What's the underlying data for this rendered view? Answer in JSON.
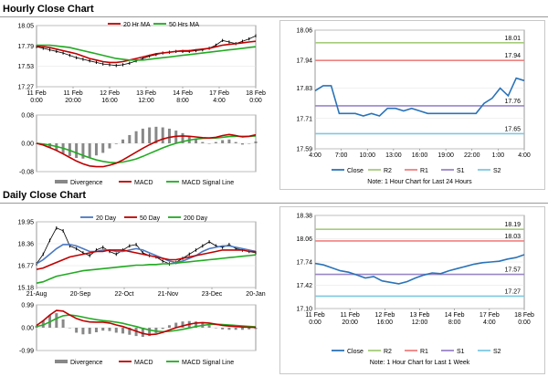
{
  "sections": {
    "hourly_title": "Hourly Close Chart",
    "daily_title": "Daily Close Chart"
  },
  "colors": {
    "price": "#000000",
    "ma_short": "#c00000",
    "ma_long": "#22aa22",
    "ma_mid": "#4a78c2",
    "close": "#2a73b8",
    "r2": "#a6cc7a",
    "r1": "#f08080",
    "s1": "#9a86c8",
    "s2": "#7ec8e3",
    "macd": "#c00000",
    "signal": "#22aa22",
    "divergence": "#888888"
  },
  "chart_data": [
    {
      "id": "hourly_price",
      "type": "line",
      "legend": [
        "20 Hr MA",
        "50 Hrs MA"
      ],
      "yticks": [
        "18.05",
        "17.79",
        "17.53",
        "17.27"
      ],
      "ytick_values": [
        18.05,
        17.79,
        17.53,
        17.27
      ],
      "ylim": [
        17.27,
        18.05
      ],
      "xticks": [
        [
          "11 Feb",
          "0:00"
        ],
        [
          "11 Feb",
          "20:00"
        ],
        [
          "12 Feb",
          "16:00"
        ],
        [
          "13 Feb",
          "12:00"
        ],
        [
          "14 Feb",
          "8:00"
        ],
        [
          "17 Feb",
          "4:00"
        ],
        [
          "18 Feb",
          "0:00"
        ]
      ],
      "close": [
        17.78,
        17.76,
        17.74,
        17.72,
        17.7,
        17.67,
        17.64,
        17.62,
        17.6,
        17.58,
        17.56,
        17.55,
        17.54,
        17.55,
        17.57,
        17.6,
        17.63,
        17.66,
        17.68,
        17.7,
        17.71,
        17.72,
        17.72,
        17.72,
        17.73,
        17.74,
        17.76,
        17.8,
        17.86,
        17.84,
        17.82,
        17.85,
        17.88,
        17.92
      ],
      "series": [
        {
          "name": "20 Hr MA",
          "values": [
            17.79,
            17.78,
            17.77,
            17.75,
            17.73,
            17.71,
            17.69,
            17.66,
            17.63,
            17.61,
            17.59,
            17.58,
            17.58,
            17.59,
            17.61,
            17.63,
            17.65,
            17.67,
            17.69,
            17.7,
            17.71,
            17.72,
            17.73,
            17.73,
            17.74,
            17.75,
            17.76,
            17.78,
            17.8,
            17.81,
            17.82,
            17.83,
            17.84,
            17.85
          ]
        },
        {
          "name": "50 Hrs MA",
          "values": [
            17.8,
            17.8,
            17.8,
            17.79,
            17.78,
            17.77,
            17.75,
            17.73,
            17.71,
            17.69,
            17.67,
            17.65,
            17.63,
            17.62,
            17.61,
            17.61,
            17.61,
            17.62,
            17.63,
            17.64,
            17.65,
            17.66,
            17.67,
            17.68,
            17.69,
            17.7,
            17.71,
            17.72,
            17.73,
            17.74,
            17.75,
            17.76,
            17.77,
            17.78
          ]
        }
      ]
    },
    {
      "id": "hourly_macd",
      "type": "line",
      "yticks": [
        "0.08",
        "0.00",
        "-0.08"
      ],
      "ytick_values": [
        0.08,
        0.0,
        -0.08
      ],
      "ylim": [
        -0.08,
        0.08
      ],
      "legend": [
        "Divergence",
        "MACD",
        "MACD Signal Line"
      ],
      "series": [
        {
          "name": "MACD",
          "values": [
            0.0,
            -0.005,
            -0.012,
            -0.02,
            -0.03,
            -0.04,
            -0.05,
            -0.058,
            -0.064,
            -0.066,
            -0.066,
            -0.062,
            -0.056,
            -0.047,
            -0.036,
            -0.025,
            -0.014,
            -0.004,
            0.005,
            0.012,
            0.017,
            0.02,
            0.021,
            0.02,
            0.018,
            0.016,
            0.015,
            0.017,
            0.022,
            0.025,
            0.022,
            0.018,
            0.02,
            0.024
          ]
        },
        {
          "name": "MACD Signal Line",
          "values": [
            0.0,
            -0.002,
            -0.005,
            -0.009,
            -0.014,
            -0.02,
            -0.027,
            -0.034,
            -0.041,
            -0.047,
            -0.051,
            -0.054,
            -0.055,
            -0.053,
            -0.049,
            -0.044,
            -0.037,
            -0.029,
            -0.021,
            -0.013,
            -0.006,
            0.0,
            0.005,
            0.009,
            0.012,
            0.014,
            0.015,
            0.015,
            0.017,
            0.019,
            0.02,
            0.02,
            0.02,
            0.021
          ]
        }
      ]
    },
    {
      "id": "hourly_levels",
      "type": "line",
      "yticks": [
        "18.06",
        "17.94",
        "17.83",
        "17.71",
        "17.59"
      ],
      "ytick_values": [
        18.06,
        17.94,
        17.83,
        17.71,
        17.59
      ],
      "ylim": [
        17.59,
        18.06
      ],
      "xticks": [
        "4:00",
        "7:00",
        "10:00",
        "13:00",
        "16:00",
        "19:00",
        "22:00",
        "1:00",
        "4:00"
      ],
      "close": [
        17.82,
        17.84,
        17.84,
        17.73,
        17.73,
        17.73,
        17.72,
        17.73,
        17.72,
        17.75,
        17.75,
        17.74,
        17.75,
        17.74,
        17.73,
        17.73,
        17.73,
        17.73,
        17.73,
        17.73,
        17.73,
        17.77,
        17.79,
        17.83,
        17.8,
        17.87,
        17.86
      ],
      "levels": [
        {
          "name": "R2",
          "value": 18.01,
          "label": "18.01"
        },
        {
          "name": "R1",
          "value": 17.94,
          "label": "17.94"
        },
        {
          "name": "S1",
          "value": 17.76,
          "label": "17.76"
        },
        {
          "name": "S2",
          "value": 17.65,
          "label": "17.65"
        }
      ],
      "legend": [
        "Close",
        "R2",
        "R1",
        "S1",
        "S2"
      ],
      "note": "Note: 1 Hour Chart for Last 24 Hours"
    },
    {
      "id": "daily_price",
      "type": "line",
      "legend": [
        "20 Day",
        "50 Day",
        "200 Day"
      ],
      "yticks": [
        "19.95",
        "18.36",
        "16.77",
        "15.18"
      ],
      "ytick_values": [
        19.95,
        18.36,
        16.77,
        15.18
      ],
      "ylim": [
        15.18,
        19.95
      ],
      "xticks": [
        "21-Aug",
        "20-Sep",
        "22-Oct",
        "21-Nov",
        "23-Dec",
        "20-Jan"
      ],
      "close": [
        16.9,
        17.6,
        18.6,
        19.5,
        19.3,
        18.2,
        18.0,
        17.7,
        17.5,
        17.9,
        18.1,
        17.8,
        17.6,
        17.9,
        18.2,
        18.3,
        17.7,
        17.5,
        17.4,
        17.1,
        16.9,
        17.0,
        17.3,
        17.6,
        17.9,
        18.2,
        18.5,
        18.2,
        18.1,
        18.3,
        18.0,
        17.9,
        17.8,
        17.7
      ],
      "series": [
        {
          "name": "20 Day",
          "values": [
            16.9,
            17.2,
            17.6,
            18.0,
            18.3,
            18.3,
            18.2,
            18.0,
            17.8,
            17.8,
            17.9,
            17.9,
            17.8,
            17.8,
            17.9,
            18.0,
            17.9,
            17.7,
            17.5,
            17.3,
            17.1,
            17.0,
            17.1,
            17.3,
            17.5,
            17.8,
            18.0,
            18.1,
            18.2,
            18.2,
            18.1,
            18.0,
            17.9,
            17.8
          ]
        },
        {
          "name": "50 Day",
          "values": [
            16.5,
            16.6,
            16.8,
            17.0,
            17.2,
            17.4,
            17.5,
            17.6,
            17.7,
            17.8,
            17.8,
            17.9,
            17.9,
            17.9,
            17.8,
            17.7,
            17.6,
            17.5,
            17.4,
            17.3,
            17.2,
            17.2,
            17.3,
            17.4,
            17.5,
            17.6,
            17.7,
            17.8,
            17.9,
            17.9,
            17.9,
            17.9,
            17.8,
            17.8
          ]
        },
        {
          "name": "200 Day",
          "values": [
            15.5,
            15.6,
            15.8,
            16.0,
            16.1,
            16.2,
            16.3,
            16.4,
            16.45,
            16.5,
            16.55,
            16.6,
            16.65,
            16.7,
            16.75,
            16.8,
            16.8,
            16.85,
            16.85,
            16.9,
            16.9,
            16.95,
            17.0,
            17.05,
            17.1,
            17.15,
            17.2,
            17.25,
            17.3,
            17.35,
            17.4,
            17.45,
            17.5,
            17.55
          ]
        }
      ]
    },
    {
      "id": "daily_macd",
      "type": "line",
      "yticks": [
        "0.99",
        "0.00",
        "-0.99"
      ],
      "ytick_values": [
        0.99,
        0.0,
        -0.99
      ],
      "ylim": [
        -0.99,
        0.99
      ],
      "legend": [
        "Divergence",
        "MACD",
        "MACD Signal Line"
      ],
      "series": [
        {
          "name": "MACD",
          "values": [
            0.1,
            0.3,
            0.55,
            0.75,
            0.72,
            0.55,
            0.4,
            0.3,
            0.25,
            0.24,
            0.24,
            0.2,
            0.12,
            0.05,
            -0.05,
            -0.15,
            -0.25,
            -0.3,
            -0.28,
            -0.2,
            -0.1,
            0.0,
            0.08,
            0.15,
            0.2,
            0.22,
            0.2,
            0.15,
            0.1,
            0.07,
            0.05,
            0.03,
            0.02,
            0.01
          ]
        },
        {
          "name": "MACD Signal Line",
          "values": [
            0.05,
            0.12,
            0.25,
            0.4,
            0.52,
            0.55,
            0.52,
            0.46,
            0.4,
            0.35,
            0.31,
            0.28,
            0.24,
            0.19,
            0.12,
            0.05,
            -0.03,
            -0.1,
            -0.15,
            -0.17,
            -0.16,
            -0.12,
            -0.07,
            -0.01,
            0.05,
            0.1,
            0.14,
            0.15,
            0.14,
            0.12,
            0.1,
            0.08,
            0.06,
            0.04
          ]
        }
      ]
    },
    {
      "id": "daily_levels",
      "type": "line",
      "yticks": [
        "18.38",
        "18.06",
        "17.74",
        "17.42",
        "17.10"
      ],
      "ytick_values": [
        18.38,
        18.06,
        17.74,
        17.42,
        17.1
      ],
      "ylim": [
        17.1,
        18.38
      ],
      "xticks": [
        [
          "11 Feb",
          "0:00"
        ],
        [
          "11 Feb",
          "20:00"
        ],
        [
          "12 Feb",
          "16:00"
        ],
        [
          "13 Feb",
          "12:00"
        ],
        [
          "14 Feb",
          "8:00"
        ],
        [
          "17 Feb",
          "4:00"
        ],
        [
          "18 Feb",
          "0:00"
        ]
      ],
      "close": [
        17.72,
        17.7,
        17.66,
        17.62,
        17.6,
        17.56,
        17.52,
        17.54,
        17.48,
        17.46,
        17.44,
        17.47,
        17.52,
        17.56,
        17.59,
        17.58,
        17.62,
        17.65,
        17.68,
        17.71,
        17.73,
        17.74,
        17.75,
        17.78,
        17.8,
        17.84
      ],
      "levels": [
        {
          "name": "R2",
          "value": 18.19,
          "label": "18.19"
        },
        {
          "name": "R1",
          "value": 18.03,
          "label": "18.03"
        },
        {
          "name": "S1",
          "value": 17.57,
          "label": "17.57"
        },
        {
          "name": "S2",
          "value": 17.27,
          "label": "17.27"
        }
      ],
      "legend": [
        "Close",
        "R2",
        "R1",
        "S1",
        "S2"
      ],
      "note": "Note: 1 Hour Chart for Last 1 Week"
    }
  ]
}
